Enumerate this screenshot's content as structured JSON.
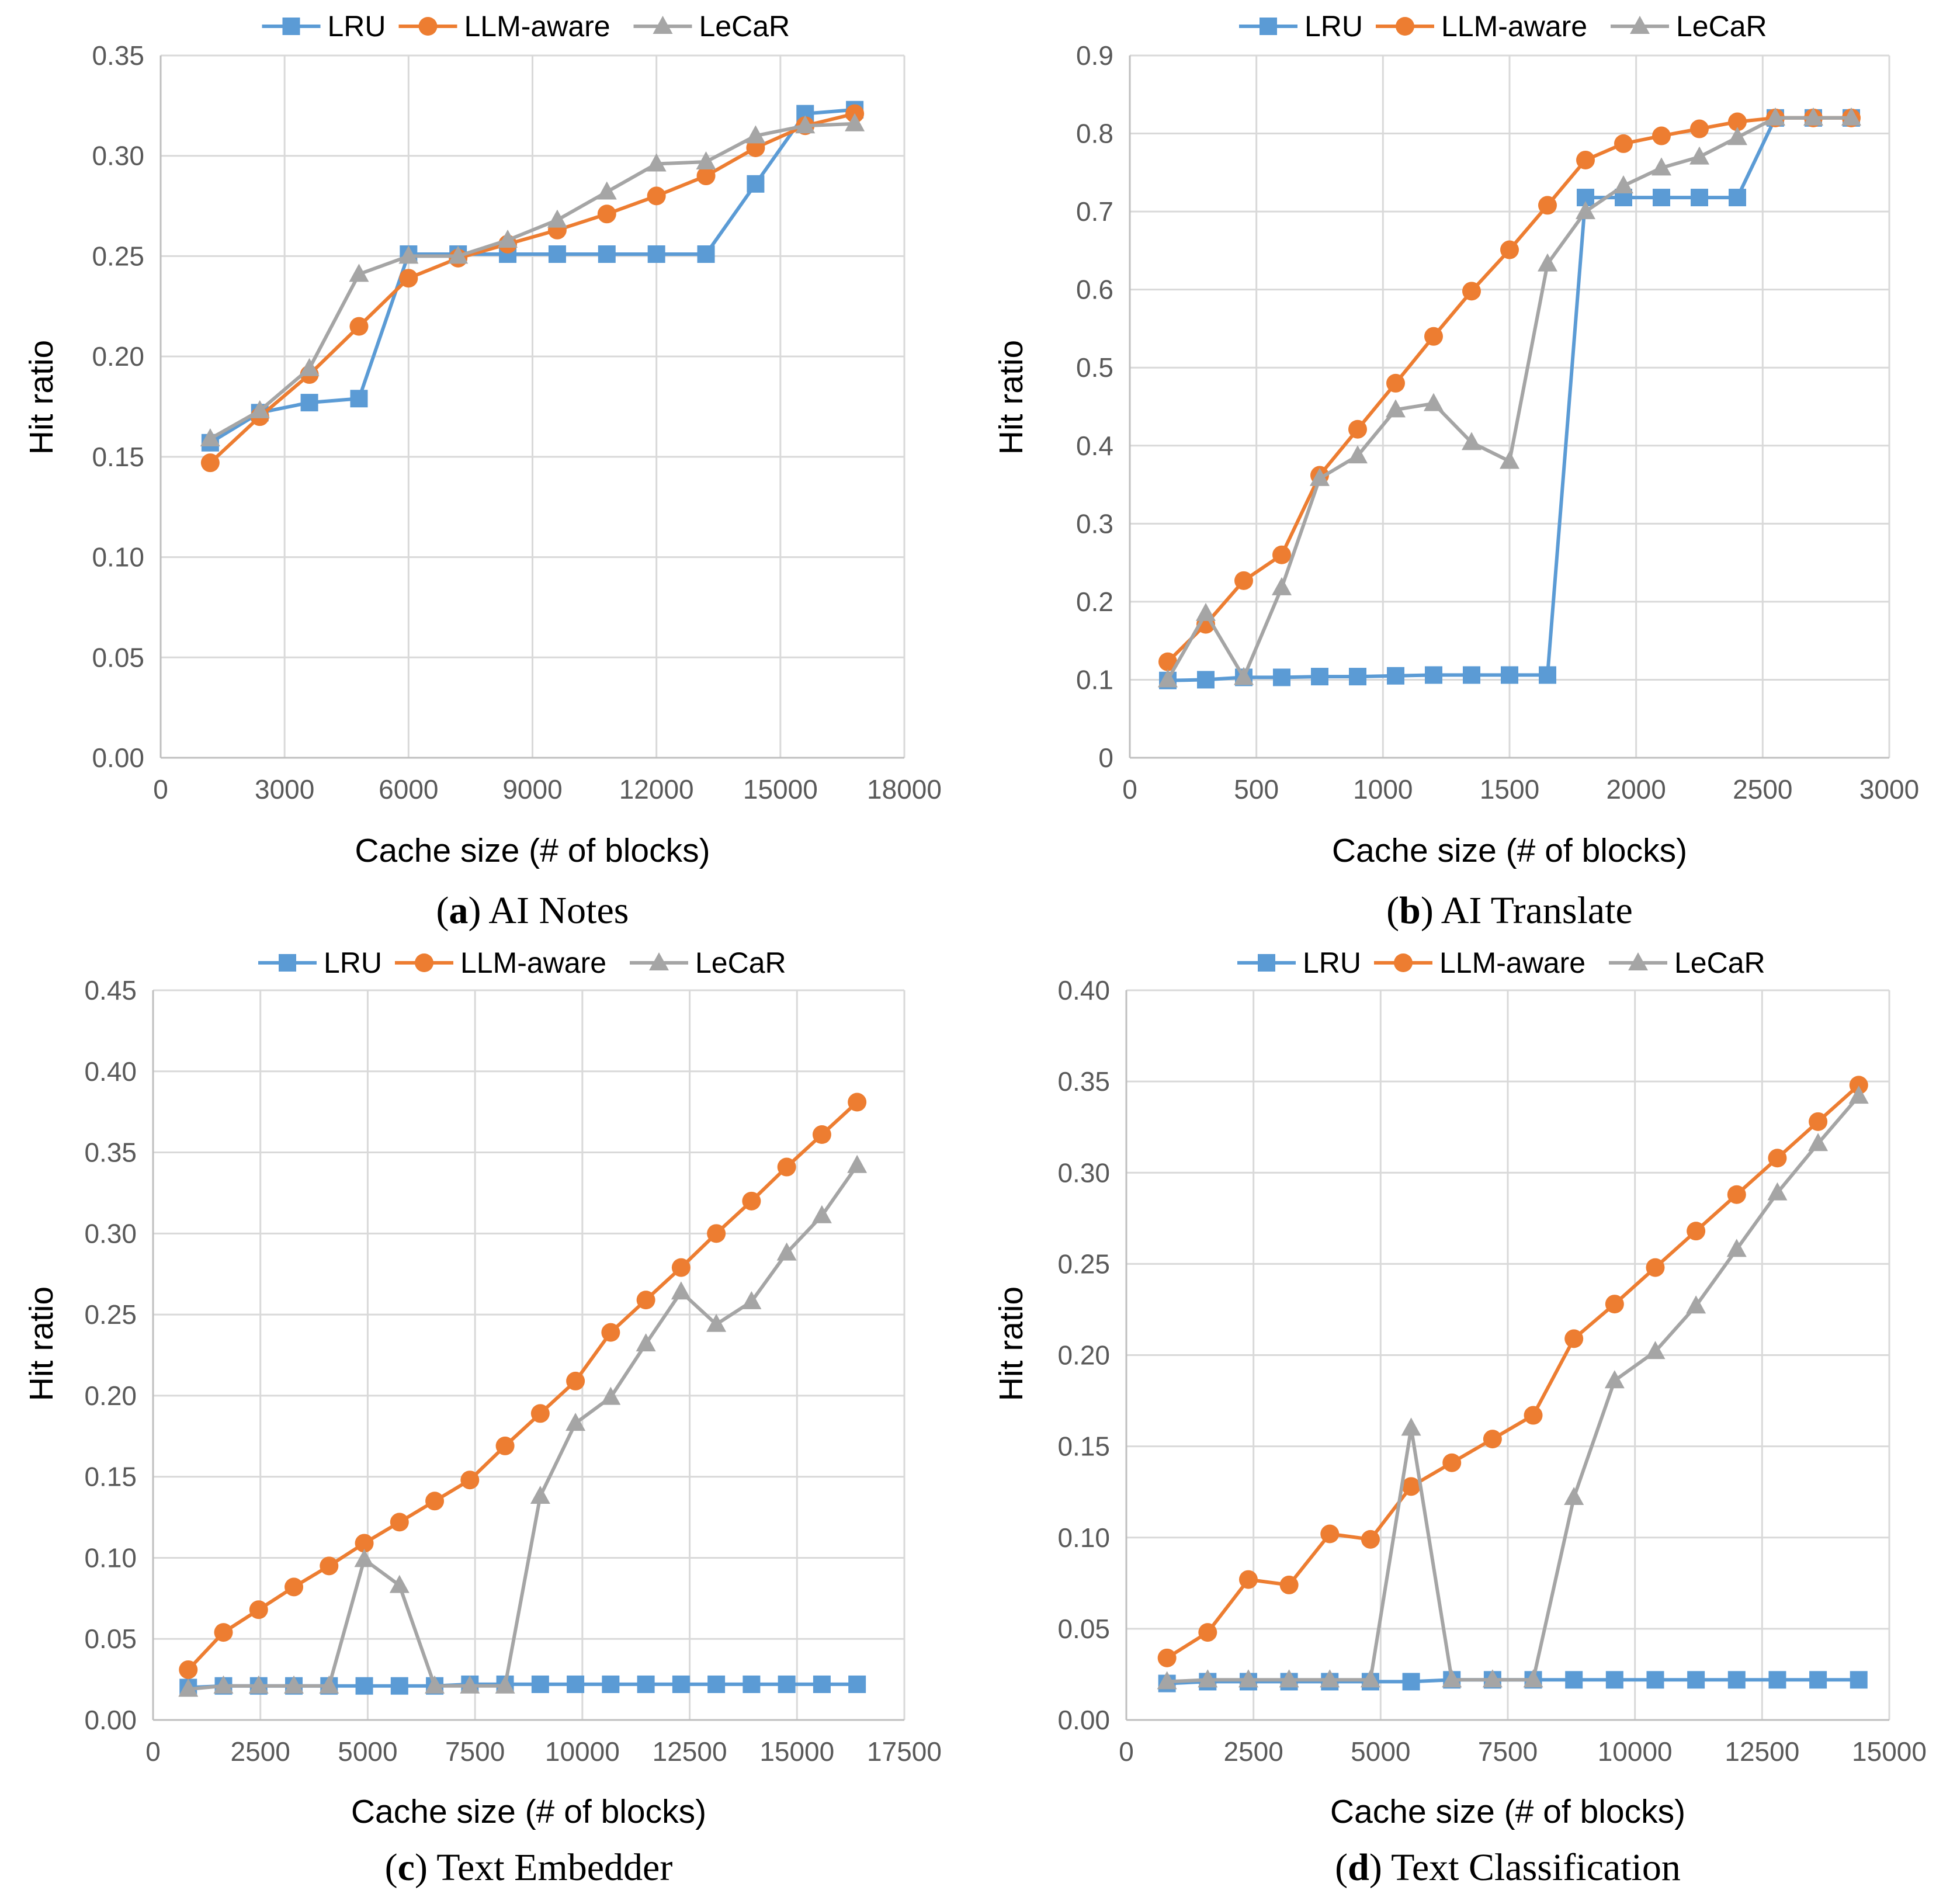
{
  "colors": {
    "LRU": "#5b9bd5",
    "LLM-aware": "#ed7d31",
    "LeCaR": "#a5a5a5",
    "grid": "#d9d9d9",
    "axis": "#bfbfbf"
  },
  "chart_data": [
    {
      "type": "line",
      "caption_letter": "a",
      "caption_text": "AI Notes",
      "xlabel": "Cache size (# of blocks)",
      "ylabel": "Hit ratio",
      "xlim": [
        0,
        18000
      ],
      "ylim": [
        0,
        0.35
      ],
      "xticks": [
        "0",
        "3000",
        "6000",
        "9000",
        "12000",
        "15000",
        "18000"
      ],
      "yticks": [
        "0.00",
        "0.05",
        "0.10",
        "0.15",
        "0.20",
        "0.25",
        "0.30",
        "0.35"
      ],
      "legend": [
        "LRU",
        "LLM-aware",
        "LeCaR"
      ],
      "x": [
        1200,
        2400,
        3600,
        4800,
        6000,
        7200,
        8400,
        9600,
        10800,
        12000,
        13200,
        14400,
        15600,
        16800
      ],
      "series": [
        {
          "name": "LRU",
          "values": [
            0.157,
            0.172,
            0.177,
            0.179,
            0.251,
            0.251,
            0.251,
            0.251,
            0.251,
            0.251,
            0.251,
            0.286,
            0.321,
            0.323
          ]
        },
        {
          "name": "LLM-aware",
          "values": [
            0.147,
            0.17,
            0.191,
            0.215,
            0.239,
            0.249,
            0.256,
            0.263,
            0.271,
            0.28,
            0.29,
            0.304,
            0.315,
            0.321
          ]
        },
        {
          "name": "LeCaR",
          "values": [
            0.159,
            0.173,
            0.194,
            0.241,
            0.25,
            0.25,
            0.258,
            0.268,
            0.282,
            0.296,
            0.297,
            0.31,
            0.315,
            0.316
          ]
        }
      ]
    },
    {
      "type": "line",
      "caption_letter": "b",
      "caption_text": "AI Translate",
      "xlabel": "Cache size (# of blocks)",
      "ylabel": "Hit ratio",
      "xlim": [
        0,
        3000
      ],
      "ylim": [
        0,
        0.9
      ],
      "xticks": [
        "0",
        "500",
        "1000",
        "1500",
        "2000",
        "2500",
        "3000"
      ],
      "yticks": [
        "0",
        "0.1",
        "0.2",
        "0.3",
        "0.4",
        "0.5",
        "0.6",
        "0.7",
        "0.8",
        "0.9"
      ],
      "legend": [
        "LRU",
        "LLM-aware",
        "LeCaR"
      ],
      "x": [
        150,
        300,
        450,
        600,
        750,
        900,
        1050,
        1200,
        1350,
        1500,
        1650,
        1800,
        1950,
        2100,
        2250,
        2400,
        2550,
        2700,
        2850
      ],
      "series": [
        {
          "name": "LRU",
          "values": [
            0.099,
            0.1,
            0.103,
            0.103,
            0.104,
            0.104,
            0.105,
            0.106,
            0.106,
            0.106,
            0.106,
            0.718,
            0.718,
            0.718,
            0.718,
            0.718,
            0.82,
            0.82,
            0.82
          ]
        },
        {
          "name": "LLM-aware",
          "values": [
            0.123,
            0.171,
            0.227,
            0.26,
            0.362,
            0.421,
            0.48,
            0.54,
            0.598,
            0.651,
            0.708,
            0.766,
            0.787,
            0.797,
            0.806,
            0.815,
            0.82,
            0.82,
            0.82
          ]
        },
        {
          "name": "LeCaR",
          "values": [
            0.1,
            0.185,
            0.103,
            0.218,
            0.358,
            0.387,
            0.446,
            0.454,
            0.404,
            0.38,
            0.633,
            0.7,
            0.733,
            0.756,
            0.77,
            0.795,
            0.82,
            0.82,
            0.82
          ]
        }
      ]
    },
    {
      "type": "line",
      "caption_letter": "c",
      "caption_text": "Text Embedder",
      "xlabel": "Cache size (# of blocks)",
      "ylabel": "Hit ratio",
      "xlim": [
        0,
        17500
      ],
      "ylim": [
        0,
        0.45
      ],
      "xticks": [
        "0",
        "2500",
        "5000",
        "7500",
        "10000",
        "12500",
        "15000",
        "17500"
      ],
      "yticks": [
        "0.00",
        "0.05",
        "0.10",
        "0.15",
        "0.20",
        "0.25",
        "0.30",
        "0.35",
        "0.40",
        "0.45"
      ],
      "legend": [
        "LRU",
        "LLM-aware",
        "LeCaR"
      ],
      "x": [
        820,
        1640,
        2460,
        3280,
        4100,
        4920,
        5740,
        6560,
        7380,
        8200,
        9020,
        9840,
        10660,
        11480,
        12300,
        13120,
        13940,
        14760,
        15580,
        16400
      ],
      "series": [
        {
          "name": "LRU",
          "values": [
            0.02,
            0.021,
            0.021,
            0.021,
            0.021,
            0.021,
            0.021,
            0.021,
            0.022,
            0.022,
            0.022,
            0.022,
            0.022,
            0.022,
            0.022,
            0.022,
            0.022,
            0.022,
            0.022,
            0.022
          ]
        },
        {
          "name": "LLM-aware",
          "values": [
            0.031,
            0.054,
            0.068,
            0.082,
            0.095,
            0.109,
            0.122,
            0.135,
            0.148,
            0.169,
            0.189,
            0.209,
            0.239,
            0.259,
            0.279,
            0.3,
            0.32,
            0.341,
            0.361,
            0.381
          ]
        },
        {
          "name": "LeCaR",
          "values": [
            0.019,
            0.021,
            0.021,
            0.021,
            0.021,
            0.099,
            0.083,
            0.021,
            0.021,
            0.021,
            0.138,
            0.183,
            0.199,
            0.232,
            0.264,
            0.244,
            0.258,
            0.288,
            0.311,
            0.342
          ]
        }
      ]
    },
    {
      "type": "line",
      "caption_letter": "d",
      "caption_text": "Text Classification",
      "xlabel": "Cache size (# of blocks)",
      "ylabel": "Hit ratio",
      "xlim": [
        0,
        15000
      ],
      "ylim": [
        0,
        0.4
      ],
      "xticks": [
        "0",
        "2500",
        "5000",
        "7500",
        "10000",
        "12500",
        "15000"
      ],
      "yticks": [
        "0.00",
        "0.05",
        "0.10",
        "0.15",
        "0.20",
        "0.25",
        "0.30",
        "0.35",
        "0.40"
      ],
      "legend": [
        "LRU",
        "LLM-aware",
        "LeCaR"
      ],
      "x": [
        800,
        1600,
        2400,
        3200,
        4000,
        4800,
        5600,
        6400,
        7200,
        8000,
        8800,
        9600,
        10400,
        11200,
        12000,
        12800,
        13600,
        14400
      ],
      "series": [
        {
          "name": "LRU",
          "values": [
            0.02,
            0.021,
            0.021,
            0.021,
            0.021,
            0.021,
            0.021,
            0.022,
            0.022,
            0.022,
            0.022,
            0.022,
            0.022,
            0.022,
            0.022,
            0.022,
            0.022,
            0.022
          ]
        },
        {
          "name": "LLM-aware",
          "values": [
            0.034,
            0.048,
            0.077,
            0.074,
            0.102,
            0.099,
            0.128,
            0.141,
            0.154,
            0.167,
            0.209,
            0.228,
            0.248,
            0.268,
            0.288,
            0.308,
            0.328,
            0.348
          ]
        },
        {
          "name": "LeCaR",
          "values": [
            0.021,
            0.022,
            0.022,
            0.022,
            0.022,
            0.022,
            0.16,
            0.022,
            0.022,
            0.022,
            0.122,
            0.186,
            0.202,
            0.227,
            0.258,
            0.289,
            0.316,
            0.342
          ]
        }
      ]
    }
  ]
}
